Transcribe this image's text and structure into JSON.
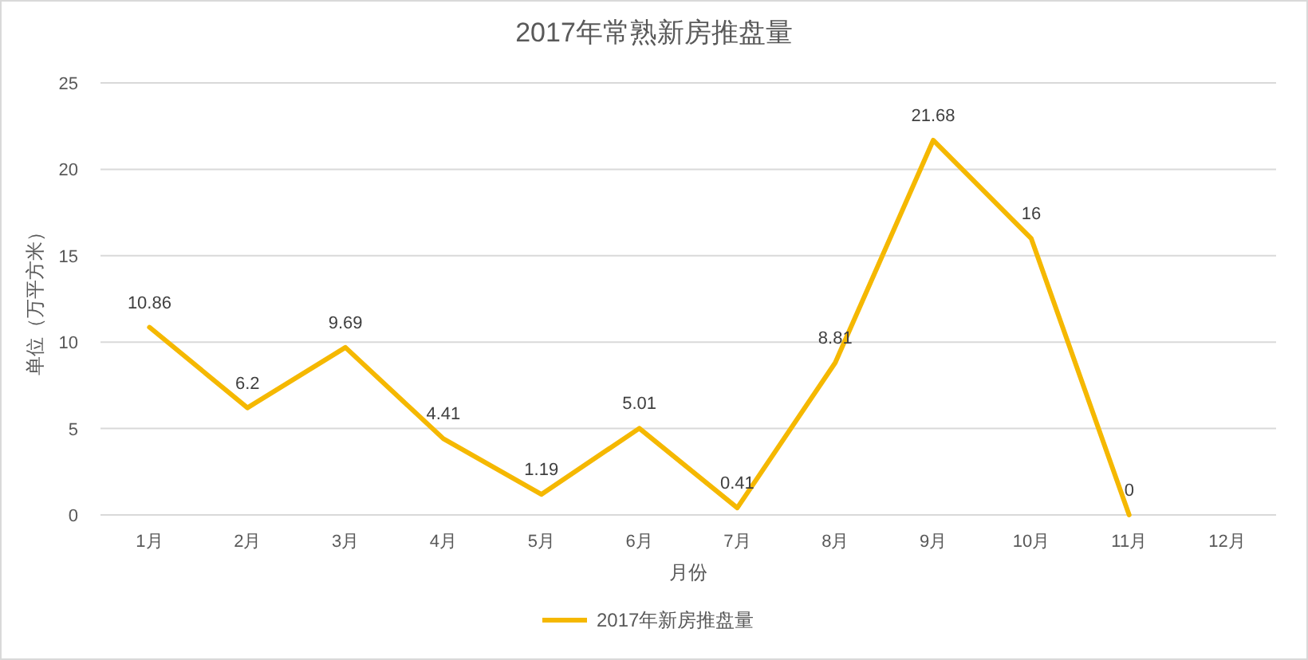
{
  "chart_data": {
    "type": "line",
    "title": "2017年常熟新房推盘量",
    "xlabel": "月份",
    "ylabel": "单位（万平方米）",
    "categories": [
      "1月",
      "2月",
      "3月",
      "4月",
      "5月",
      "6月",
      "7月",
      "8月",
      "9月",
      "10月",
      "11月",
      "12月"
    ],
    "series": [
      {
        "name": "2017年新房推盘量",
        "color": "#f5b800",
        "values": [
          10.86,
          6.2,
          9.69,
          4.41,
          1.19,
          5.01,
          0.41,
          8.81,
          21.68,
          16,
          0,
          null
        ]
      }
    ],
    "ylim": [
      0,
      25
    ],
    "yticks": [
      0,
      5,
      10,
      15,
      20,
      25
    ],
    "grid": "y",
    "legend": "bottom",
    "data_labels": true,
    "marker": "none",
    "line_style": "solid"
  }
}
